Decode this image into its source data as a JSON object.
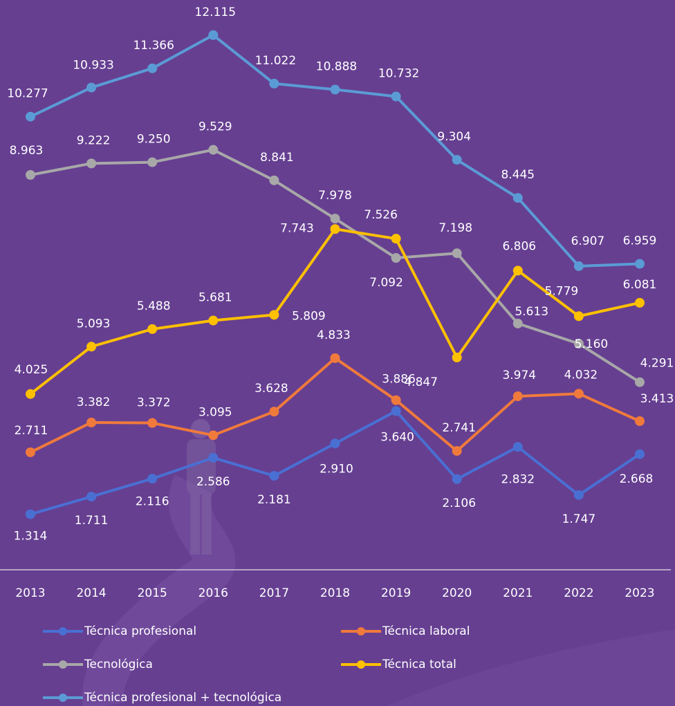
{
  "chart_data": {
    "type": "line",
    "categories": [
      "2013",
      "2014",
      "2015",
      "2016",
      "2017",
      "2018",
      "2019",
      "2020",
      "2021",
      "2022",
      "2023"
    ],
    "ylim": [
      0,
      13000
    ],
    "series": [
      {
        "name": "Técnica profesional",
        "color": "#4a6fd3",
        "values": [
          1314,
          1711,
          2116,
          2586,
          2181,
          2910,
          3640,
          2106,
          2832,
          1747,
          2668
        ],
        "value_labels": [
          "1.314",
          "1.711",
          "2.116",
          "2.586",
          "2.181",
          "2.910",
          "3.640",
          "2.106",
          "2.832",
          "1.747",
          "2.668"
        ]
      },
      {
        "name": "Técnica laboral",
        "color": "#f07a3c",
        "values": [
          2711,
          3382,
          3372,
          3095,
          3628,
          4833,
          3886,
          2741,
          3974,
          4032,
          3413
        ],
        "value_labels": [
          "2.711",
          "3.382",
          "3.372",
          "3.095",
          "3.628",
          "4.833",
          "3.886",
          "2.741",
          "3.974",
          "4.032",
          "3.413"
        ]
      },
      {
        "name": "Tecnológica",
        "color": "#a8a8a8",
        "values": [
          8963,
          9222,
          9250,
          9529,
          8841,
          7978,
          7092,
          7198,
          5613,
          5160,
          4291
        ],
        "value_labels": [
          "8.963",
          "9.222",
          "9.250",
          "9.529",
          "8.841",
          "7.978",
          "7.092",
          "7.198",
          "5.613",
          "5.160",
          "4.291"
        ]
      },
      {
        "name": "Técnica total",
        "color": "#ffc000",
        "values": [
          4025,
          5093,
          5488,
          5681,
          5809,
          7743,
          7526,
          4847,
          6806,
          5779,
          6081
        ],
        "value_labels": [
          "4.025",
          "5.093",
          "5.488",
          "5.681",
          "5.809",
          "7.743",
          "7.526",
          "4.847",
          "6.806",
          "5.779",
          "6.081"
        ]
      },
      {
        "name": "Técnica profesional + tecnológica",
        "color": "#5b9bd5",
        "values": [
          10277,
          10933,
          11366,
          12115,
          11022,
          10888,
          10732,
          9304,
          8445,
          6907,
          6959
        ],
        "value_labels": [
          "10.277",
          "10.933",
          "11.366",
          "12.115",
          "11.022",
          "10.888",
          "10.732",
          "9.304",
          "8.445",
          "6.907",
          "6.959"
        ]
      }
    ]
  }
}
